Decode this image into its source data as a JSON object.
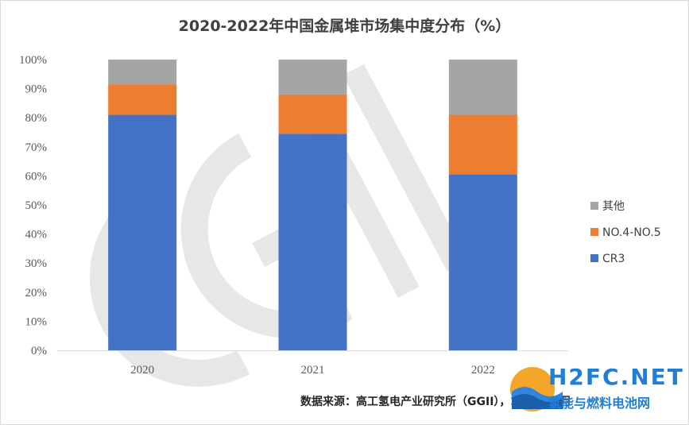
{
  "chart_data": {
    "type": "bar",
    "stacked": true,
    "title": "2020-2022年中国金属堆市场集中度分布（%）",
    "categories": [
      "2020",
      "2021",
      "2022"
    ],
    "series": [
      {
        "name": "CR3",
        "values": [
          81,
          74.5,
          60.5
        ],
        "color": "#4472c4"
      },
      {
        "name": "NO.4-NO.5",
        "values": [
          10.5,
          13.5,
          20.5
        ],
        "color": "#ed7d31"
      },
      {
        "name": "其他",
        "values": [
          8.5,
          12,
          19
        ],
        "color": "#a5a5a5"
      }
    ],
    "y_ticks": [
      "0%",
      "10%",
      "20%",
      "30%",
      "40%",
      "50%",
      "60%",
      "70%",
      "80%",
      "90%",
      "100%"
    ],
    "ylim": [
      0,
      100
    ],
    "legend_position": "right",
    "grid": false
  },
  "source_note": "数据来源：高工氢电产业研究所（GGII），2023年5月",
  "watermark": {
    "line1": "H2FC.NET",
    "line2": "氢能与燃料电池网"
  }
}
